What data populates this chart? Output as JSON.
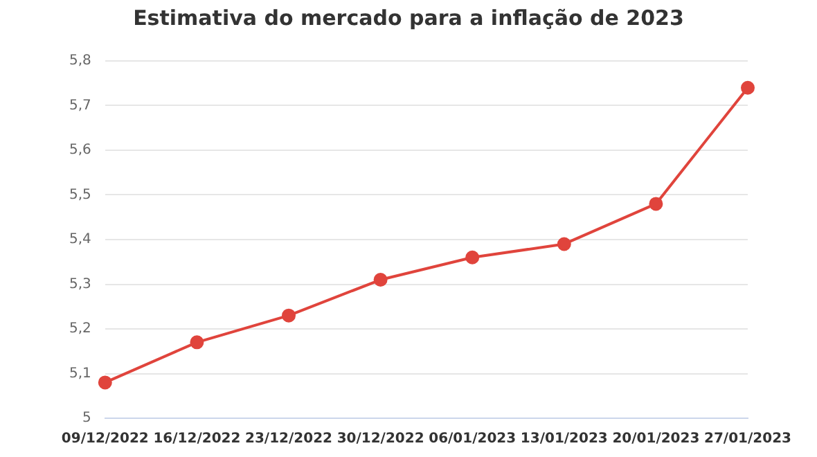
{
  "chart_data": {
    "type": "line",
    "title": "Estimativa do mercado para a inflação de 2023",
    "categories": [
      "09/12/2022",
      "16/12/2022",
      "23/12/2022",
      "30/12/2022",
      "06/01/2023",
      "13/01/2023",
      "20/01/2023",
      "27/01/2023"
    ],
    "series": [
      {
        "color": "#e0443c",
        "values": [
          5.08,
          5.17,
          5.23,
          5.31,
          5.36,
          5.39,
          5.48,
          5.74
        ]
      }
    ],
    "ylim": [
      5,
      5.8
    ],
    "yticks": [
      {
        "value": 5,
        "label": "5"
      },
      {
        "value": 5.1,
        "label": "5,1"
      },
      {
        "value": 5.2,
        "label": "5,2"
      },
      {
        "value": 5.3,
        "label": "5,3"
      },
      {
        "value": 5.4,
        "label": "5,4"
      },
      {
        "value": 5.5,
        "label": "5,5"
      },
      {
        "value": 5.6,
        "label": "5,6"
      },
      {
        "value": 5.7,
        "label": "5,7"
      },
      {
        "value": 5.8,
        "label": "5,8"
      }
    ],
    "grid": "y",
    "legend": false,
    "marker": "circle",
    "line_style": "solid"
  }
}
